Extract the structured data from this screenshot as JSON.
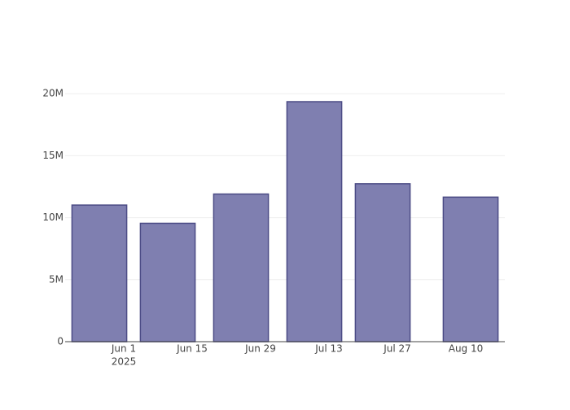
{
  "chart_data": {
    "type": "bar",
    "x": [
      "2025-05-27",
      "2025-06-10",
      "2025-06-25",
      "2025-07-10",
      "2025-07-24",
      "2025-08-11"
    ],
    "values": [
      11020000,
      9550000,
      11910000,
      19360000,
      12740000,
      11660000
    ],
    "color": "#7f7fb0",
    "line_color": "#4b4b85",
    "xlim": [
      "2025-05-20",
      "2025-08-18"
    ],
    "xticks": [
      {
        "value": "2025-06-01",
        "label": "Jun 1"
      },
      {
        "value": "2025-06-15",
        "label": "Jun 15"
      },
      {
        "value": "2025-06-29",
        "label": "Jun 29"
      },
      {
        "value": "2025-07-13",
        "label": "Jul 13"
      },
      {
        "value": "2025-07-27",
        "label": "Jul 27"
      },
      {
        "value": "2025-08-10",
        "label": "Aug 10"
      }
    ],
    "x_year": "2025",
    "ylim": [
      0,
      21000000
    ],
    "yticks": [
      0,
      {
        "value": 5000000,
        "label": "5M"
      },
      {
        "value": 10000000,
        "label": "10M"
      },
      {
        "value": 15000000,
        "label": "15M"
      },
      {
        "value": 20000000,
        "label": "20M"
      }
    ],
    "grid": true
  }
}
